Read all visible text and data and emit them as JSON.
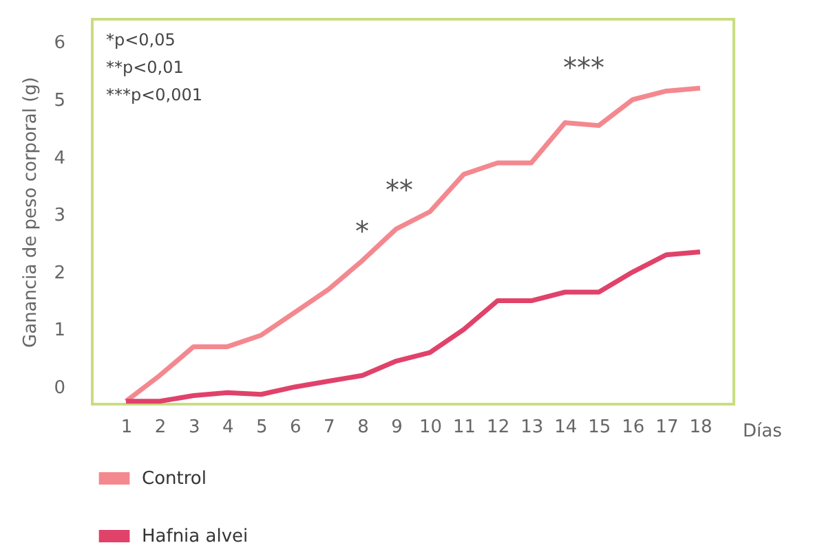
{
  "chart_data": {
    "type": "line",
    "x": [
      1,
      2,
      3,
      4,
      5,
      6,
      7,
      8,
      9,
      10,
      11,
      12,
      13,
      14,
      15,
      16,
      17,
      18
    ],
    "xlabel": "Días",
    "ylabel": "Ganancia de peso corporal  (g)",
    "xlim": [
      0,
      19
    ],
    "xticks": [
      1,
      2,
      3,
      4,
      5,
      6,
      7,
      8,
      9,
      10,
      11,
      12,
      13,
      14,
      15,
      16,
      17,
      18
    ],
    "ylim": [
      -0.3,
      6.4
    ],
    "yticks": [
      0,
      1,
      2,
      3,
      4,
      5,
      6
    ],
    "series": [
      {
        "name": "Control",
        "color": "#f4888f",
        "values": [
          -0.25,
          0.2,
          0.7,
          0.7,
          0.9,
          1.3,
          1.7,
          2.2,
          2.75,
          3.05,
          3.7,
          3.9,
          3.9,
          4.6,
          4.55,
          5.0,
          5.15,
          5.2
        ]
      },
      {
        "name": "Hafnia alvei",
        "color": "#e0426a",
        "values": [
          -0.25,
          -0.25,
          -0.15,
          -0.1,
          -0.13,
          0.0,
          0.1,
          0.2,
          0.45,
          0.6,
          1.0,
          1.5,
          1.5,
          1.65,
          1.65,
          2.0,
          2.3,
          2.35
        ]
      }
    ],
    "annotations": [
      "*p<0,05",
      "**p<0,01",
      "***p<0,001",
      "*",
      "**",
      "***"
    ],
    "grid": false,
    "legend": "bottom",
    "marker": "none",
    "line_style": "solid"
  }
}
